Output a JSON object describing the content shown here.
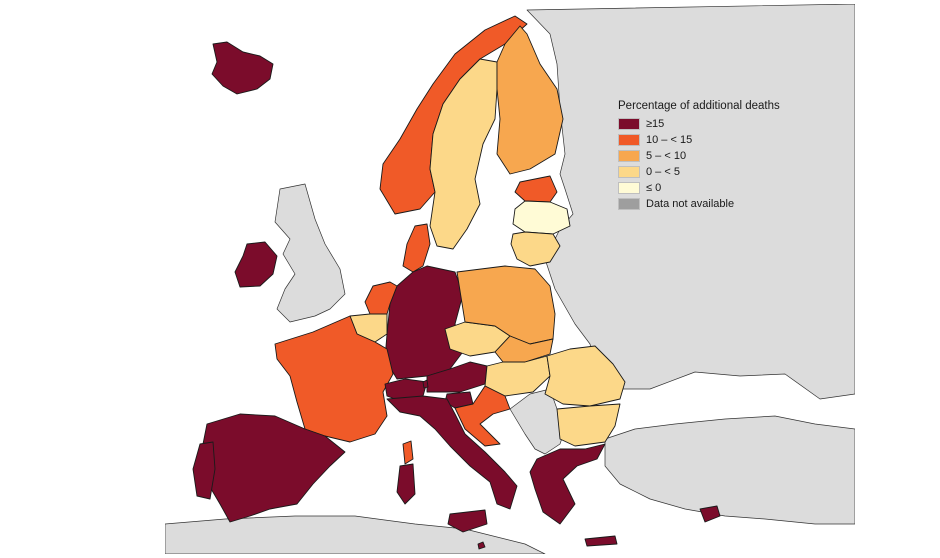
{
  "legend": {
    "title": "Percentage of additional deaths",
    "items": [
      {
        "label": "≥15",
        "color": "#7b0c2b"
      },
      {
        "label": "10 – < 15",
        "color": "#f05a28"
      },
      {
        "label": "5 – < 10",
        "color": "#f7a74f"
      },
      {
        "label": "0 – < 5",
        "color": "#fcd889"
      },
      {
        "label": "≤ 0",
        "color": "#fffbd6"
      },
      {
        "label": "Data not available",
        "color": "#9e9e9e"
      }
    ]
  },
  "colors": {
    "neighbour_land": "#dcdcdc",
    "sea": "#ffffff"
  },
  "map_data": {
    "classes": {
      "Iceland": "≥15",
      "Ireland": "≥15",
      "Germany": "≥15",
      "Austria": "≥15",
      "Switzerland": "≥15",
      "Liechtenstein": "≥15",
      "Slovenia": "≥15",
      "Italy": "≥15",
      "Spain": "≥15",
      "Greece": "≥15",
      "Cyprus": "≥15",
      "Malta": "≥15",
      "Norway": "10 – < 15",
      "Denmark": "10 – < 15",
      "Netherlands": "10 – < 15",
      "France": "10 – < 15",
      "Estonia": "10 – < 15",
      "Croatia": "10 – < 15",
      "Finland": "5 – < 10",
      "Poland": "5 – < 10",
      "Slovakia": "5 – < 10",
      "Sweden": "0 – < 5",
      "Lithuania": "0 – < 5",
      "Belgium": "0 – < 5",
      "Czechia": "0 – < 5",
      "Hungary": "0 – < 5",
      "Romania": "0 – < 5",
      "Bulgaria": "0 – < 5",
      "Latvia": "≤ 0"
    }
  }
}
